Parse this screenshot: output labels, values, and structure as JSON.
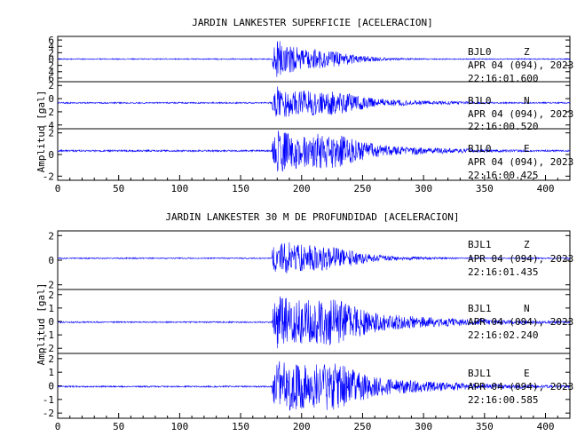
{
  "chart_data": [
    {
      "type": "line",
      "title": "JARDIN LANKESTER SUPERFICIE [ACELERACION]",
      "ylabel": "Amplitud [gal]",
      "xlabel": "",
      "xlim": [
        0,
        420
      ],
      "xticks": [
        "0",
        "50",
        "100",
        "150",
        "200",
        "250",
        "300",
        "350",
        "400"
      ],
      "series_color": "#0000ff",
      "grid": false,
      "panels": [
        {
          "station": "BJL0",
          "component": "Z",
          "date": "APR 04 (094), 2023",
          "time": "22:16:01.600",
          "ylim": [
            -6.5,
            6.5
          ],
          "yticks": [
            "6",
            "4",
            "2",
            "0",
            "2",
            "4",
            "6"
          ],
          "onset_s": 176,
          "peak_amplitude": 5.5,
          "decay_s": 35,
          "noise": 0.15,
          "shaking_end_s": 330
        },
        {
          "station": "BJL0",
          "component": "N",
          "date": "APR 04 (094), 2023",
          "time": "22:16:00.520",
          "ylim": [
            -5.5,
            4.5
          ],
          "yticks": [
            "2",
            "0",
            "-2",
            "-4"
          ],
          "onset_s": 176,
          "peak_amplitude": 3.5,
          "decay_s": 60,
          "noise": 0.15,
          "shaking_end_s": 360
        },
        {
          "station": "BJL0",
          "component": "E",
          "date": "APR 04 (094), 2023",
          "time": "22:16:00.425",
          "ylim": [
            -4,
            3
          ],
          "yticks": [
            "2",
            "0",
            "-2"
          ],
          "onset_s": 176,
          "peak_amplitude": 3.0,
          "decay_s": 65,
          "noise": 0.12,
          "shaking_end_s": 360
        }
      ]
    },
    {
      "type": "line",
      "title": "JARDIN LANKESTER 30 M DE PROFUNDIDAD [ACELERACION]",
      "ylabel": "Amplitud [gal]",
      "xlabel": "",
      "xlim": [
        0,
        420
      ],
      "xticks": [
        "0",
        "50",
        "100",
        "150",
        "200",
        "250",
        "300",
        "350",
        "400"
      ],
      "series_color": "#0000ff",
      "grid": false,
      "panels": [
        {
          "station": "BJL1",
          "component": "Z",
          "date": "APR 04 (094), 2023",
          "time": "22:16:01.435",
          "ylim": [
            -4,
            3.5
          ],
          "yticks": [
            "2",
            "0",
            "-2"
          ],
          "onset_s": 176,
          "peak_amplitude": 2.5,
          "decay_s": 45,
          "noise": 0.08,
          "shaking_end_s": 340
        },
        {
          "station": "BJL1",
          "component": "N",
          "date": "APR 04 (094), 2023",
          "time": "22:16:02.240",
          "ylim": [
            -2.2,
            2.3
          ],
          "yticks": [
            "2",
            "1",
            "0",
            "-1",
            "-2"
          ],
          "onset_s": 176,
          "peak_amplitude": 1.9,
          "decay_s": 75,
          "noise": 0.05,
          "shaking_end_s": 380
        },
        {
          "station": "BJL1",
          "component": "E",
          "date": "APR 04 (094), 2023",
          "time": "22:16:00.585",
          "ylim": [
            -2.2,
            2.3
          ],
          "yticks": [
            "2",
            "1",
            "0",
            "-1",
            "-2"
          ],
          "onset_s": 176,
          "peak_amplitude": 1.9,
          "decay_s": 75,
          "noise": 0.05,
          "shaking_end_s": 380
        }
      ]
    }
  ]
}
